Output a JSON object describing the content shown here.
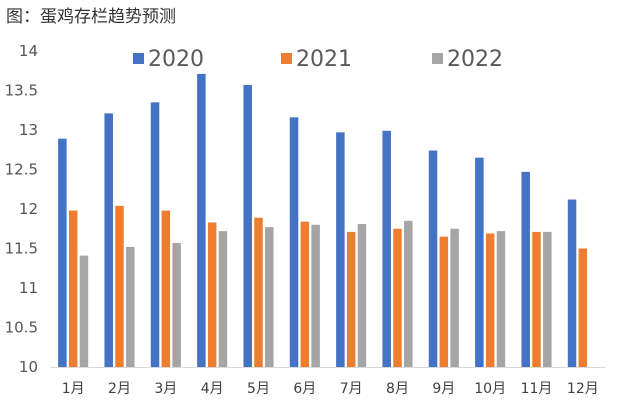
{
  "title": "图：蛋鸡存栏趋势预测",
  "colors": {
    "s2020": "#4472C4",
    "s2021": "#ED7D31",
    "s2022": "#A5A5A5",
    "axis": "#D9D9D9"
  },
  "chart_data": {
    "type": "bar",
    "title": "图：蛋鸡存栏趋势预测",
    "xlabel": "",
    "ylabel": "",
    "ylim": [
      10,
      14
    ],
    "yticks": [
      10,
      10.5,
      11,
      11.5,
      12,
      12.5,
      13,
      13.5,
      14
    ],
    "ytick_labels": [
      "10",
      "10.5",
      "11",
      "11.5",
      "12",
      "12.5",
      "13",
      "13.5",
      "14"
    ],
    "grid": false,
    "legend": "top",
    "categories": [
      "1月",
      "2月",
      "3月",
      "4月",
      "5月",
      "6月",
      "7月",
      "8月",
      "9月",
      "10月",
      "11月",
      "12月"
    ],
    "series": [
      {
        "name": "2020",
        "color": "#4472C4",
        "values": [
          12.89,
          13.21,
          13.35,
          13.71,
          13.57,
          13.16,
          12.97,
          12.99,
          12.74,
          12.65,
          12.47,
          12.12
        ]
      },
      {
        "name": "2021",
        "color": "#ED7D31",
        "values": [
          11.98,
          12.04,
          11.98,
          11.83,
          11.89,
          11.84,
          11.71,
          11.75,
          11.65,
          11.69,
          11.71,
          11.5
        ]
      },
      {
        "name": "2022",
        "color": "#A5A5A5",
        "values": [
          11.41,
          11.52,
          11.57,
          11.72,
          11.77,
          11.8,
          11.81,
          11.85,
          11.75,
          11.72,
          11.71,
          null
        ]
      }
    ]
  }
}
